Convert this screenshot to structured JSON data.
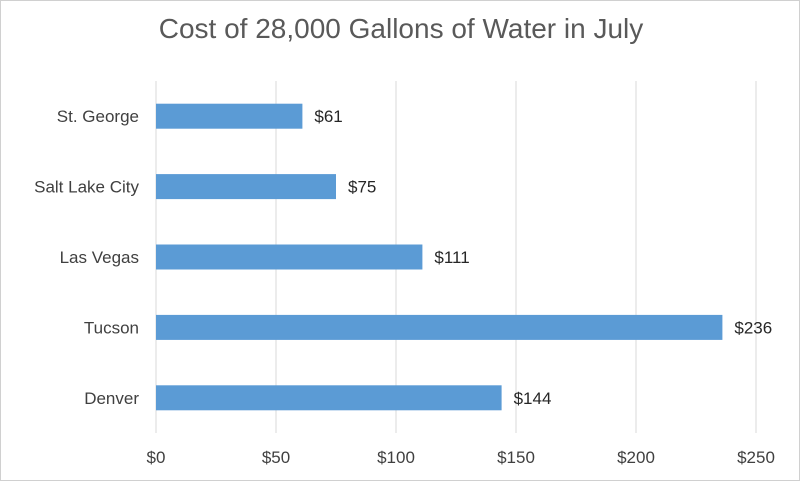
{
  "chart_data": {
    "type": "bar",
    "orientation": "horizontal",
    "title": "Cost of 28,000 Gallons of Water in July",
    "categories": [
      "St. George",
      "Salt Lake City",
      "Las Vegas",
      "Tucson",
      "Denver"
    ],
    "values": [
      61,
      75,
      111,
      236,
      144
    ],
    "data_labels": [
      "$61",
      "$75",
      "$111",
      "$236",
      "$144"
    ],
    "xlim": [
      0,
      250
    ],
    "x_ticks": [
      0,
      50,
      100,
      150,
      200,
      250
    ],
    "x_tick_labels": [
      "$0",
      "$50",
      "$100",
      "$150",
      "$200",
      "$250"
    ],
    "xlabel": "",
    "ylabel": "",
    "grid": "vertical",
    "legend": "none",
    "bar_color": "#5b9bd5"
  }
}
